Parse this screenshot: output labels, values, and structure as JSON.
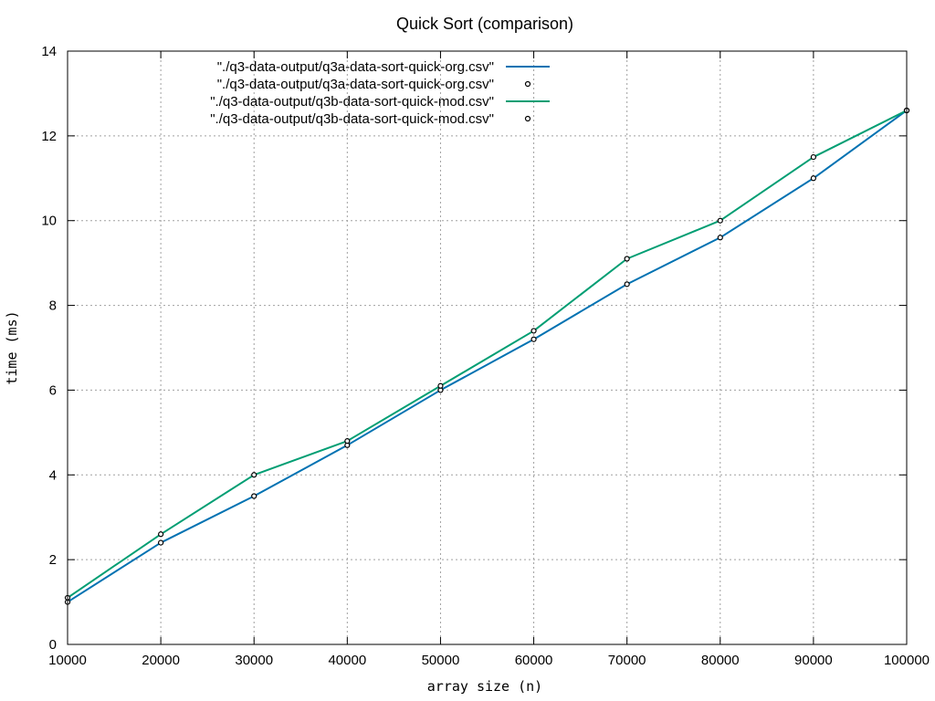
{
  "chart_data": {
    "type": "line",
    "title": "Quick Sort (comparison)",
    "xlabel": "array size (n)",
    "ylabel": "time (ms)",
    "x": [
      10000,
      20000,
      30000,
      40000,
      50000,
      60000,
      70000,
      80000,
      90000,
      100000
    ],
    "xlim": [
      10000,
      100000
    ],
    "ylim": [
      0,
      14
    ],
    "xticks": [
      "10000",
      "20000",
      "30000",
      "40000",
      "50000",
      "60000",
      "70000",
      "80000",
      "90000",
      "100000"
    ],
    "yticks": [
      "0",
      "2",
      "4",
      "6",
      "8",
      "10",
      "12",
      "14"
    ],
    "grid": true,
    "legend_position": "top",
    "legend": [
      "\"./q3-data-output/q3a-data-sort-quick-org.csv\"",
      "\"./q3-data-output/q3a-data-sort-quick-org.csv\"",
      "\"./q3-data-output/q3b-data-sort-quick-mod.csv\"",
      "\"./q3-data-output/q3b-data-sort-quick-mod.csv\""
    ],
    "series": [
      {
        "name": "\"./q3-data-output/q3a-data-sort-quick-org.csv\"",
        "style": "line",
        "color": "#0072b2",
        "values": [
          1.0,
          2.4,
          3.5,
          4.7,
          6.0,
          7.2,
          8.5,
          9.6,
          11.0,
          12.6
        ]
      },
      {
        "name": "\"./q3-data-output/q3a-data-sort-quick-org.csv\"",
        "style": "points",
        "color": "#000000",
        "values": [
          1.0,
          2.4,
          3.5,
          4.7,
          6.0,
          7.2,
          8.5,
          9.6,
          11.0,
          12.6
        ]
      },
      {
        "name": "\"./q3-data-output/q3b-data-sort-quick-mod.csv\"",
        "style": "line",
        "color": "#009e73",
        "values": [
          1.1,
          2.6,
          4.0,
          4.8,
          6.1,
          7.4,
          9.1,
          10.0,
          11.5,
          12.6
        ]
      },
      {
        "name": "\"./q3-data-output/q3b-data-sort-quick-mod.csv\"",
        "style": "points",
        "color": "#000000",
        "values": [
          1.1,
          2.6,
          4.0,
          4.8,
          6.1,
          7.4,
          9.1,
          10.0,
          11.5,
          12.6
        ]
      }
    ]
  }
}
